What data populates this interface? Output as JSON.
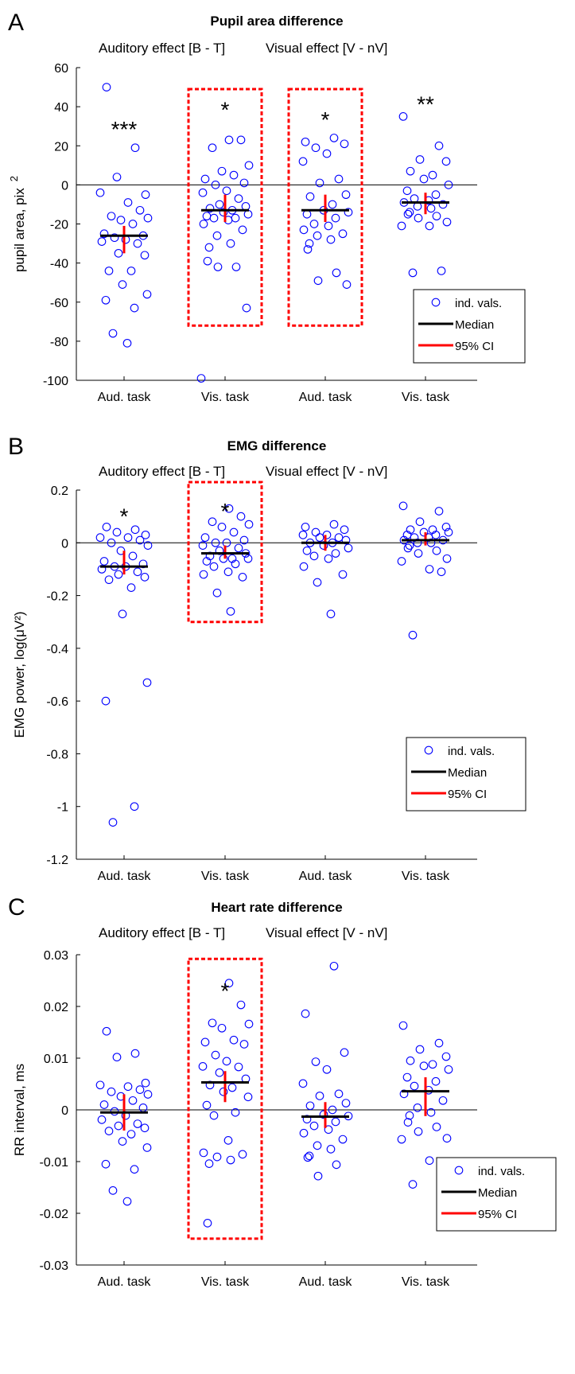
{
  "chart_data": [
    {
      "panel_label": "A",
      "type": "scatter",
      "title": "Pupil area difference",
      "subtitle_left": "Auditory effect [B - T]",
      "subtitle_right": "Visual effect [V - nV]",
      "ylabel": "pupil area, pix",
      "ylabel_sup": "2",
      "ylim": [
        -100,
        60
      ],
      "yticks": [
        60,
        40,
        20,
        0,
        -20,
        -40,
        -60,
        -80,
        -100
      ],
      "ytick_labels": [
        "60",
        "40",
        "20",
        "0",
        "-20",
        "-40",
        "-60",
        "-80",
        "-100"
      ],
      "categories": [
        "Aud. task",
        "Vis. task",
        "Aud. task",
        "Vis. task"
      ],
      "legend": [
        "ind. vals.",
        "Median",
        "95% CI"
      ],
      "colors": {
        "points": "#0000ff",
        "median": "#000000",
        "ci": "#ff0000",
        "highlight": "#ff0000"
      },
      "highlight_groups": [
        1,
        2
      ],
      "highlight_range": [
        -72,
        49
      ],
      "significance": [
        "***",
        "*",
        "*",
        "**"
      ],
      "sig_y": [
        31,
        41,
        36,
        44
      ],
      "groups": [
        {
          "median": -26,
          "ci": [
            -35,
            -21
          ],
          "values": [
            50,
            19,
            4,
            -5,
            -4,
            -9,
            -13,
            -16,
            -17,
            -18,
            -20,
            -25,
            -26,
            -27,
            -28,
            -29,
            -30,
            -35,
            -36,
            -44,
            -44,
            -51,
            -56,
            -59,
            -63,
            -76,
            -81
          ]
        },
        {
          "median": -13,
          "ci": [
            -19,
            -5
          ],
          "values": [
            23,
            23,
            19,
            10,
            7,
            5,
            3,
            1,
            0,
            -3,
            -4,
            -7,
            -10,
            -11,
            -12,
            -13,
            -14,
            -15,
            -16,
            -17,
            -17,
            -18,
            -20,
            -23,
            -26,
            -30,
            -32,
            -39,
            -42,
            -42,
            -63,
            -99
          ]
        },
        {
          "median": -13,
          "ci": [
            -19,
            -5
          ],
          "values": [
            24,
            22,
            21,
            19,
            16,
            12,
            3,
            1,
            -5,
            -6,
            -10,
            -13,
            -14,
            -15,
            -17,
            -20,
            -21,
            -23,
            -25,
            -26,
            -28,
            -30,
            -33,
            -45,
            -49,
            -51
          ]
        },
        {
          "median": -9,
          "ci": [
            -15,
            -4
          ],
          "values": [
            35,
            20,
            13,
            12,
            7,
            5,
            3,
            0,
            -3,
            -5,
            -7,
            -8,
            -9,
            -10,
            -11,
            -12,
            -14,
            -15,
            -16,
            -17,
            -19,
            -21,
            -21,
            -44,
            -45
          ]
        }
      ]
    },
    {
      "panel_label": "B",
      "type": "scatter",
      "title": "EMG difference",
      "subtitle_left": "Auditory effect [B - T]",
      "subtitle_right": "Visual effect [V - nV]",
      "ylabel": "EMG power, log(μV²)",
      "ylabel_sup": "",
      "ylim": [
        -1.2,
        0.2
      ],
      "yticks": [
        0.2,
        0,
        -0.2,
        -0.4,
        -0.6,
        -0.8,
        -1,
        -1.2
      ],
      "ytick_labels": [
        "0.2",
        "0",
        "-0.2",
        "-0.4",
        "-0.6",
        "-0.8",
        "-1",
        "-1.2"
      ],
      "categories": [
        "Aud. task",
        "Vis. task",
        "Aud. task",
        "Vis. task"
      ],
      "legend": [
        "ind. vals.",
        "Median",
        "95% CI"
      ],
      "colors": {
        "points": "#0000ff",
        "median": "#000000",
        "ci": "#ff0000",
        "highlight": "#ff0000"
      },
      "highlight_groups": [
        1
      ],
      "highlight_range": [
        -0.3,
        0.23
      ],
      "significance": [
        "*",
        "*",
        "",
        ""
      ],
      "sig_y": [
        0.12,
        0.14,
        0,
        0
      ],
      "groups": [
        {
          "median": -0.09,
          "ci": [
            -0.12,
            -0.03
          ],
          "values": [
            0.06,
            0.05,
            0.04,
            0.03,
            0.02,
            0.02,
            0.01,
            0,
            -0.01,
            -0.03,
            -0.05,
            -0.07,
            -0.08,
            -0.09,
            -0.09,
            -0.1,
            -0.11,
            -0.12,
            -0.13,
            -0.14,
            -0.17,
            -0.27,
            -0.53,
            -0.6,
            -1.0,
            -1.06
          ]
        },
        {
          "median": -0.04,
          "ci": [
            -0.06,
            -0.01
          ],
          "values": [
            0.13,
            0.1,
            0.08,
            0.07,
            0.06,
            0.04,
            0.02,
            0.01,
            0,
            0,
            -0.01,
            -0.02,
            -0.03,
            -0.04,
            -0.05,
            -0.06,
            -0.06,
            -0.06,
            -0.07,
            -0.08,
            -0.09,
            -0.11,
            -0.12,
            -0.13,
            -0.19,
            -0.26
          ]
        },
        {
          "median": 0.0,
          "ci": [
            -0.03,
            0.03
          ],
          "values": [
            0.07,
            0.06,
            0.05,
            0.04,
            0.03,
            0.03,
            0.02,
            0.02,
            0.01,
            0,
            0,
            -0.01,
            -0.02,
            -0.03,
            -0.04,
            -0.05,
            -0.06,
            -0.09,
            -0.12,
            -0.15,
            -0.27
          ]
        },
        {
          "median": 0.01,
          "ci": [
            -0.01,
            0.04
          ],
          "values": [
            0.14,
            0.12,
            0.08,
            0.06,
            0.05,
            0.05,
            0.04,
            0.04,
            0.03,
            0.03,
            0.02,
            0.02,
            0.01,
            0.01,
            0,
            0,
            -0.01,
            -0.02,
            -0.03,
            -0.04,
            -0.06,
            -0.07,
            -0.1,
            -0.11,
            -0.35
          ]
        }
      ]
    },
    {
      "panel_label": "C",
      "type": "scatter",
      "title": "Heart rate difference",
      "subtitle_left": "Auditory effect [B - T]",
      "subtitle_right": "Visual effect [V - nV]",
      "ylabel": "RR interval, ms",
      "ylabel_sup": "",
      "ylim": [
        -0.03,
        0.03
      ],
      "yticks": [
        0.03,
        0.02,
        0.01,
        0,
        -0.01,
        -0.02,
        -0.03
      ],
      "ytick_labels": [
        "0.03",
        "0.02",
        "0.01",
        "0",
        "-0.01",
        "-0.02",
        "-0.03"
      ],
      "categories": [
        "Aud. task",
        "Vis. task",
        "Aud. task",
        "Vis. task"
      ],
      "legend": [
        "ind. vals.",
        "Median",
        "95% CI"
      ],
      "colors": {
        "points": "#0000ff",
        "median": "#000000",
        "ci": "#ff0000",
        "highlight": "#ff0000"
      },
      "highlight_groups": [
        1
      ],
      "highlight_range": [
        -0.0249,
        0.0292
      ],
      "significance": [
        "",
        "*",
        "",
        ""
      ],
      "sig_y": [
        0,
        0.024,
        0,
        0
      ],
      "groups": [
        {
          "median": -0.0005,
          "ci": [
            -0.004,
            0.003
          ],
          "values": [
            0.0152,
            0.0109,
            0.0102,
            0.0052,
            0.0048,
            0.0045,
            0.0039,
            0.0035,
            0.003,
            0.0026,
            0.0018,
            0.001,
            0.0004,
            -0.0003,
            -0.0011,
            -0.0019,
            -0.0027,
            -0.0031,
            -0.0035,
            -0.0041,
            -0.0047,
            -0.0061,
            -0.0073,
            -0.0105,
            -0.0115,
            -0.0156,
            -0.0177
          ]
        },
        {
          "median": 0.0053,
          "ci": [
            0.0015,
            0.0075
          ],
          "values": [
            0.0245,
            0.0203,
            0.0168,
            0.0166,
            0.0158,
            0.0135,
            0.0131,
            0.0127,
            0.0106,
            0.0094,
            0.0084,
            0.0083,
            0.0072,
            0.006,
            0.0048,
            0.0043,
            0.0035,
            0.0025,
            0.0009,
            -0.0005,
            -0.0011,
            -0.0059,
            -0.0083,
            -0.0086,
            -0.0091,
            -0.0097,
            -0.0104,
            -0.0219
          ]
        },
        {
          "median": -0.0013,
          "ci": [
            -0.0035,
            0.0015
          ],
          "values": [
            0.0278,
            0.0186,
            0.0111,
            0.0093,
            0.0078,
            0.0051,
            0.0031,
            0.0027,
            0.0013,
            0.0008,
            0,
            -0.0009,
            -0.0012,
            -0.0018,
            -0.0023,
            -0.0031,
            -0.0038,
            -0.0045,
            -0.0057,
            -0.0069,
            -0.0076,
            -0.0089,
            -0.0092,
            -0.0106,
            -0.0128
          ]
        },
        {
          "median": 0.0036,
          "ci": [
            -0.0012,
            0.0063
          ],
          "values": [
            0.0163,
            0.0129,
            0.0117,
            0.0103,
            0.0095,
            0.0088,
            0.0085,
            0.0078,
            0.0063,
            0.0055,
            0.0046,
            0.0038,
            0.0031,
            0.0018,
            0.0004,
            -0.0005,
            -0.0011,
            -0.0024,
            -0.0033,
            -0.0042,
            -0.0055,
            -0.0057,
            -0.0098,
            -0.0116,
            -0.0144,
            -0.0179
          ]
        }
      ]
    }
  ]
}
